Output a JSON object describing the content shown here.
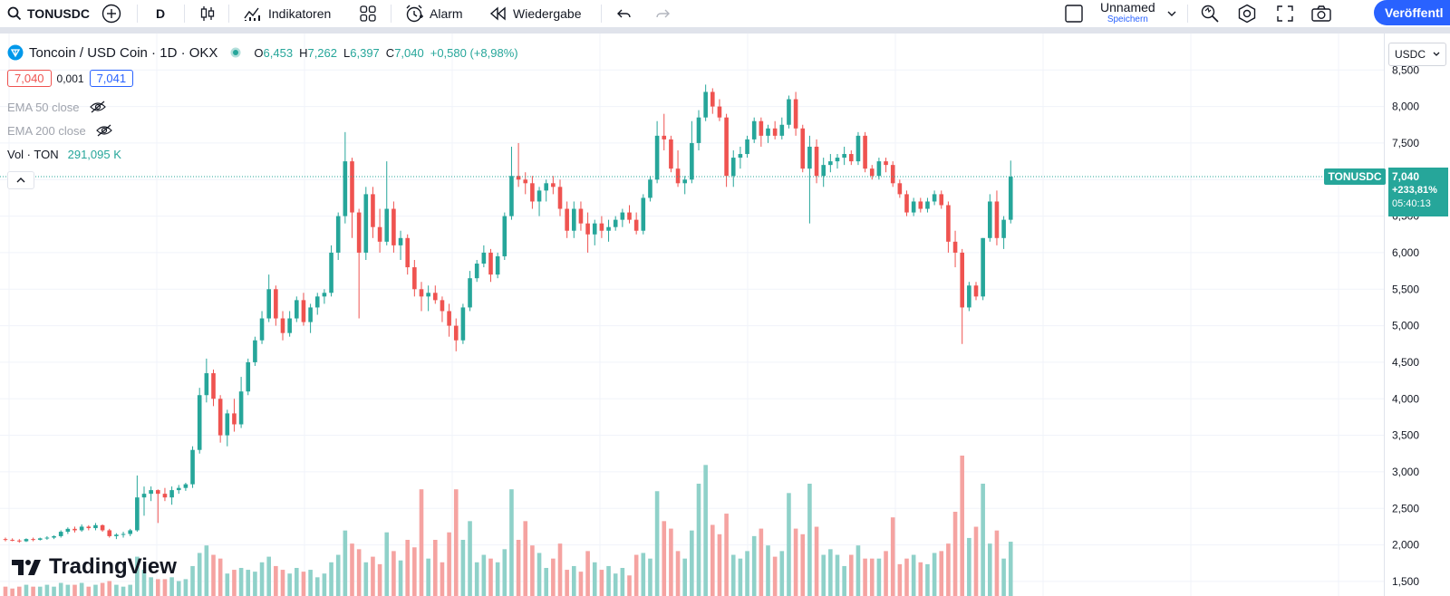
{
  "toolbar": {
    "symbol": "TONUSDC",
    "interval": "D",
    "indicators_label": "Indikatoren",
    "alarm_label": "Alarm",
    "replay_label": "Wiedergabe",
    "layout_name": "Unnamed",
    "layout_sub": "Speichern",
    "publish_label": "Veröffentl"
  },
  "legend": {
    "title": "Toncoin / USD Coin · 1D · OKX",
    "open_label": "O",
    "open": "6,453",
    "high_label": "H",
    "high": "7,262",
    "low_label": "L",
    "low": "6,397",
    "close_label": "C",
    "close": "7,040",
    "change": "+0,580 (+8,98%)",
    "bid": "7,040",
    "spread": "0,001",
    "ask": "7,041",
    "ema50": "EMA 50 close",
    "ema200": "EMA 200 close",
    "vol_label": "Vol · TON",
    "vol_value": "291,095 K"
  },
  "price_axis": {
    "currency": "USDC",
    "ticks": [
      "8,500",
      "8,000",
      "7,500",
      "7,000",
      "6,500",
      "6,000",
      "5,500",
      "5,000",
      "4,500",
      "4,000",
      "3,500",
      "3,000",
      "2,500",
      "2,000",
      "1,500"
    ],
    "symbol_tag": "TONUSDC",
    "last_price": "7,040",
    "last_change": "+233,81%",
    "countdown": "05:40:13"
  },
  "brand": {
    "name": "TradingView"
  },
  "colors": {
    "up": "#26a69a",
    "down": "#ef5350",
    "up_vol": "#8fd1c9",
    "down_vol": "#f5a3a1",
    "accent": "#2962ff"
  },
  "chart_data": {
    "type": "candlestick",
    "symbol": "TONUSDC",
    "interval": "1D",
    "exchange": "OKX",
    "y_range": [
      1.4,
      8.9
    ],
    "series": [
      {
        "name": "TONUSDC",
        "candles": [
          [
            2.08,
            2.1,
            2.05,
            2.07
          ],
          [
            2.07,
            2.09,
            2.05,
            2.06
          ],
          [
            2.06,
            2.08,
            2.03,
            2.05
          ],
          [
            2.05,
            2.09,
            2.04,
            2.08
          ],
          [
            2.08,
            2.1,
            2.05,
            2.07
          ],
          [
            2.07,
            2.1,
            2.06,
            2.09
          ],
          [
            2.09,
            2.12,
            2.07,
            2.1
          ],
          [
            2.1,
            2.13,
            2.08,
            2.12
          ],
          [
            2.12,
            2.2,
            2.1,
            2.18
          ],
          [
            2.18,
            2.24,
            2.15,
            2.22
          ],
          [
            2.22,
            2.25,
            2.17,
            2.2
          ],
          [
            2.2,
            2.28,
            2.18,
            2.25
          ],
          [
            2.25,
            2.27,
            2.2,
            2.23
          ],
          [
            2.23,
            2.3,
            2.2,
            2.27
          ],
          [
            2.27,
            2.28,
            2.18,
            2.2
          ],
          [
            2.2,
            2.22,
            2.1,
            2.12
          ],
          [
            2.12,
            2.16,
            2.08,
            2.14
          ],
          [
            2.14,
            2.18,
            2.1,
            2.15
          ],
          [
            2.15,
            2.22,
            2.12,
            2.2
          ],
          [
            2.2,
            2.95,
            2.18,
            2.65
          ],
          [
            2.65,
            2.8,
            2.4,
            2.7
          ],
          [
            2.7,
            2.8,
            2.6,
            2.75
          ],
          [
            2.75,
            2.76,
            2.3,
            2.7
          ],
          [
            2.7,
            2.78,
            2.6,
            2.65
          ],
          [
            2.65,
            2.8,
            2.55,
            2.75
          ],
          [
            2.75,
            2.82,
            2.7,
            2.78
          ],
          [
            2.78,
            2.85,
            2.74,
            2.83
          ],
          [
            2.83,
            3.35,
            2.78,
            3.3
          ],
          [
            3.3,
            4.15,
            3.25,
            4.05
          ],
          [
            4.05,
            4.55,
            3.95,
            4.35
          ],
          [
            4.35,
            4.4,
            3.9,
            4.0
          ],
          [
            4.0,
            4.05,
            3.4,
            3.5
          ],
          [
            3.5,
            3.85,
            3.35,
            3.8
          ],
          [
            3.8,
            4.0,
            3.55,
            3.65
          ],
          [
            3.65,
            4.3,
            3.6,
            4.1
          ],
          [
            4.1,
            4.55,
            4.05,
            4.5
          ],
          [
            4.5,
            4.85,
            4.45,
            4.8
          ],
          [
            4.8,
            5.2,
            4.75,
            5.1
          ],
          [
            5.1,
            5.7,
            5.05,
            5.5
          ],
          [
            5.5,
            5.55,
            5.0,
            5.1
          ],
          [
            5.1,
            5.2,
            4.8,
            4.9
          ],
          [
            4.9,
            5.2,
            4.85,
            5.1
          ],
          [
            5.1,
            5.4,
            5.05,
            5.35
          ],
          [
            5.35,
            5.45,
            5.0,
            5.05
          ],
          [
            5.05,
            5.3,
            4.9,
            5.25
          ],
          [
            5.25,
            5.45,
            5.15,
            5.4
          ],
          [
            5.4,
            5.5,
            5.3,
            5.45
          ],
          [
            5.45,
            6.1,
            5.4,
            6.0
          ],
          [
            6.0,
            6.55,
            5.9,
            6.5
          ],
          [
            6.5,
            7.65,
            6.4,
            7.25
          ],
          [
            7.25,
            7.3,
            6.2,
            6.55
          ],
          [
            6.55,
            6.6,
            5.1,
            6.0
          ],
          [
            6.0,
            6.9,
            5.9,
            6.8
          ],
          [
            6.8,
            6.9,
            6.2,
            6.35
          ],
          [
            6.35,
            6.6,
            6.0,
            6.15
          ],
          [
            6.15,
            7.25,
            6.1,
            6.6
          ],
          [
            6.6,
            6.7,
            6.0,
            6.1
          ],
          [
            6.1,
            6.3,
            5.9,
            6.2
          ],
          [
            6.2,
            6.25,
            5.7,
            5.8
          ],
          [
            5.8,
            5.9,
            5.4,
            5.5
          ],
          [
            5.5,
            5.6,
            5.2,
            5.4
          ],
          [
            5.4,
            5.55,
            5.2,
            5.45
          ],
          [
            5.45,
            5.55,
            5.3,
            5.35
          ],
          [
            5.35,
            5.4,
            5.05,
            5.2
          ],
          [
            5.2,
            5.3,
            4.85,
            5.0
          ],
          [
            5.0,
            5.1,
            4.65,
            4.8
          ],
          [
            4.8,
            5.3,
            4.75,
            5.25
          ],
          [
            5.25,
            5.75,
            5.2,
            5.65
          ],
          [
            5.65,
            5.9,
            5.6,
            5.85
          ],
          [
            5.85,
            6.1,
            5.8,
            6.0
          ],
          [
            6.0,
            6.05,
            5.6,
            5.7
          ],
          [
            5.7,
            6.0,
            5.65,
            5.95
          ],
          [
            5.95,
            6.55,
            5.9,
            6.5
          ],
          [
            6.5,
            7.45,
            6.45,
            7.05
          ],
          [
            7.05,
            7.5,
            6.9,
            7.0
          ],
          [
            7.0,
            7.1,
            6.8,
            6.95
          ],
          [
            6.95,
            7.05,
            6.6,
            6.7
          ],
          [
            6.7,
            6.9,
            6.5,
            6.85
          ],
          [
            6.85,
            7.0,
            6.7,
            6.95
          ],
          [
            6.95,
            7.05,
            6.8,
            6.9
          ],
          [
            6.9,
            7.0,
            6.5,
            6.6
          ],
          [
            6.6,
            6.7,
            6.2,
            6.3
          ],
          [
            6.3,
            6.7,
            6.2,
            6.6
          ],
          [
            6.6,
            6.7,
            6.3,
            6.4
          ],
          [
            6.4,
            6.55,
            6.0,
            6.25
          ],
          [
            6.25,
            6.45,
            6.1,
            6.4
          ],
          [
            6.4,
            6.5,
            6.2,
            6.3
          ],
          [
            6.3,
            6.45,
            6.15,
            6.35
          ],
          [
            6.35,
            6.5,
            6.3,
            6.45
          ],
          [
            6.45,
            6.6,
            6.35,
            6.55
          ],
          [
            6.55,
            6.65,
            6.4,
            6.45
          ],
          [
            6.45,
            6.55,
            6.25,
            6.3
          ],
          [
            6.3,
            6.8,
            6.25,
            6.75
          ],
          [
            6.75,
            7.05,
            6.7,
            7.0
          ],
          [
            7.0,
            7.8,
            6.95,
            7.6
          ],
          [
            7.6,
            7.9,
            7.4,
            7.55
          ],
          [
            7.55,
            7.6,
            7.1,
            7.15
          ],
          [
            7.15,
            7.4,
            6.9,
            6.95
          ],
          [
            6.95,
            7.05,
            6.8,
            7.0
          ],
          [
            7.0,
            7.8,
            6.95,
            7.5
          ],
          [
            7.5,
            7.95,
            7.4,
            7.85
          ],
          [
            7.85,
            8.3,
            7.8,
            8.2
          ],
          [
            8.2,
            8.25,
            7.9,
            8.0
          ],
          [
            8.0,
            8.1,
            7.8,
            7.85
          ],
          [
            7.85,
            7.9,
            6.9,
            7.05
          ],
          [
            7.05,
            7.4,
            6.9,
            7.3
          ],
          [
            7.3,
            7.45,
            7.15,
            7.35
          ],
          [
            7.35,
            7.6,
            7.3,
            7.55
          ],
          [
            7.55,
            7.85,
            7.5,
            7.8
          ],
          [
            7.8,
            7.85,
            7.45,
            7.6
          ],
          [
            7.6,
            7.75,
            7.5,
            7.7
          ],
          [
            7.7,
            7.8,
            7.55,
            7.6
          ],
          [
            7.6,
            7.85,
            7.55,
            7.75
          ],
          [
            7.75,
            8.15,
            7.7,
            8.1
          ],
          [
            8.1,
            8.2,
            7.6,
            7.7
          ],
          [
            7.7,
            7.75,
            7.1,
            7.15
          ],
          [
            7.15,
            7.6,
            6.4,
            7.45
          ],
          [
            7.45,
            7.55,
            6.95,
            7.05
          ],
          [
            7.05,
            7.3,
            6.9,
            7.2
          ],
          [
            7.2,
            7.35,
            7.1,
            7.25
          ],
          [
            7.25,
            7.35,
            7.15,
            7.3
          ],
          [
            7.3,
            7.45,
            7.2,
            7.35
          ],
          [
            7.35,
            7.4,
            7.2,
            7.25
          ],
          [
            7.25,
            7.65,
            7.2,
            7.6
          ],
          [
            7.6,
            7.65,
            7.1,
            7.15
          ],
          [
            7.15,
            7.2,
            7.0,
            7.05
          ],
          [
            7.05,
            7.3,
            7.0,
            7.25
          ],
          [
            7.25,
            7.3,
            7.1,
            7.2
          ],
          [
            7.2,
            7.25,
            6.9,
            6.95
          ],
          [
            6.95,
            7.0,
            6.75,
            6.8
          ],
          [
            6.8,
            6.85,
            6.5,
            6.55
          ],
          [
            6.55,
            6.75,
            6.5,
            6.7
          ],
          [
            6.7,
            6.75,
            6.55,
            6.6
          ],
          [
            6.6,
            6.75,
            6.55,
            6.7
          ],
          [
            6.7,
            6.85,
            6.65,
            6.8
          ],
          [
            6.8,
            6.85,
            6.6,
            6.65
          ],
          [
            6.65,
            6.7,
            6.0,
            6.15
          ],
          [
            6.15,
            6.3,
            5.8,
            6.0
          ],
          [
            6.0,
            6.05,
            4.75,
            5.25
          ],
          [
            5.25,
            5.6,
            5.2,
            5.55
          ],
          [
            5.55,
            5.6,
            5.35,
            5.4
          ],
          [
            5.4,
            6.2,
            5.35,
            6.2
          ],
          [
            6.2,
            6.8,
            6.15,
            6.7
          ],
          [
            6.7,
            6.85,
            6.1,
            6.2
          ],
          [
            6.2,
            6.5,
            6.05,
            6.45
          ],
          [
            6.45,
            7.26,
            6.4,
            7.04
          ]
        ]
      },
      {
        "name": "Vol · TON",
        "volumes": [
          0.05,
          0.04,
          0.05,
          0.06,
          0.05,
          0.05,
          0.06,
          0.05,
          0.07,
          0.06,
          0.06,
          0.07,
          0.05,
          0.06,
          0.07,
          0.08,
          0.06,
          0.05,
          0.06,
          0.21,
          0.14,
          0.1,
          0.09,
          0.09,
          0.1,
          0.08,
          0.09,
          0.16,
          0.23,
          0.27,
          0.22,
          0.2,
          0.12,
          0.14,
          0.15,
          0.14,
          0.13,
          0.18,
          0.21,
          0.16,
          0.14,
          0.12,
          0.15,
          0.13,
          0.14,
          0.1,
          0.12,
          0.18,
          0.22,
          0.35,
          0.28,
          0.25,
          0.18,
          0.21,
          0.17,
          0.34,
          0.24,
          0.19,
          0.3,
          0.26,
          0.57,
          0.2,
          0.3,
          0.18,
          0.34,
          0.57,
          0.3,
          0.4,
          0.18,
          0.22,
          0.2,
          0.18,
          0.25,
          0.57,
          0.3,
          0.4,
          0.27,
          0.23,
          0.15,
          0.2,
          0.28,
          0.14,
          0.16,
          0.13,
          0.24,
          0.18,
          0.14,
          0.16,
          0.12,
          0.15,
          0.11,
          0.22,
          0.23,
          0.2,
          0.56,
          0.4,
          0.36,
          0.24,
          0.2,
          0.35,
          0.6,
          0.7,
          0.38,
          0.33,
          0.44,
          0.22,
          0.2,
          0.24,
          0.32,
          0.36,
          0.27,
          0.21,
          0.24,
          0.55,
          0.36,
          0.33,
          0.6,
          0.37,
          0.22,
          0.25,
          0.22,
          0.16,
          0.22,
          0.27,
          0.2,
          0.2,
          0.2,
          0.24,
          0.42,
          0.17,
          0.2,
          0.22,
          0.18,
          0.17,
          0.23,
          0.24,
          0.28,
          0.45,
          0.75,
          0.31,
          0.37,
          0.6,
          0.28,
          0.35,
          0.2,
          0.29
        ]
      }
    ]
  }
}
